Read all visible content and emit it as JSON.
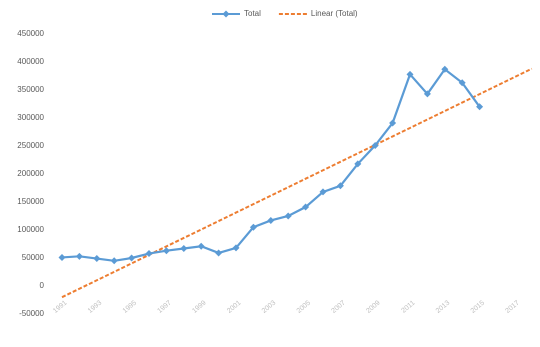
{
  "chart_data": {
    "type": "line",
    "categories": [
      "1991",
      null,
      "1993",
      null,
      "1995",
      null,
      "1997",
      null,
      "1999",
      null,
      "2001",
      null,
      "2003",
      null,
      "2005",
      null,
      "2007",
      null,
      "2009",
      null,
      "2011",
      null,
      "2013",
      null,
      "2015",
      null,
      "2017",
      null
    ],
    "series": [
      {
        "name": "Total",
        "color": "#5b9bd5",
        "marker": "diamond",
        "values": [
          51000,
          53000,
          49000,
          45000,
          50000,
          58000,
          63000,
          67000,
          71000,
          59000,
          68000,
          105000,
          117000,
          125000,
          141000,
          168000,
          179000,
          218000,
          251000,
          291000,
          378000,
          343000,
          387000,
          363000,
          320000,
          null,
          null,
          null
        ]
      },
      {
        "name": "Linear (Total)",
        "color": "#ed7d31",
        "dashed": true,
        "values": [
          -20000,
          -4900,
          10200,
          25300,
          40400,
          55600,
          70700,
          85800,
          100900,
          116000,
          131100,
          146200,
          161300,
          176400,
          191600,
          206700,
          221800,
          236900,
          252000,
          267100,
          282200,
          297300,
          312400,
          327600,
          342700,
          357800,
          372900,
          388000
        ]
      }
    ],
    "ylim": [
      -50000,
      450000
    ],
    "yticks": [
      -50000,
      0,
      50000,
      100000,
      150000,
      200000,
      250000,
      300000,
      350000,
      400000,
      450000
    ],
    "legend": "top"
  }
}
